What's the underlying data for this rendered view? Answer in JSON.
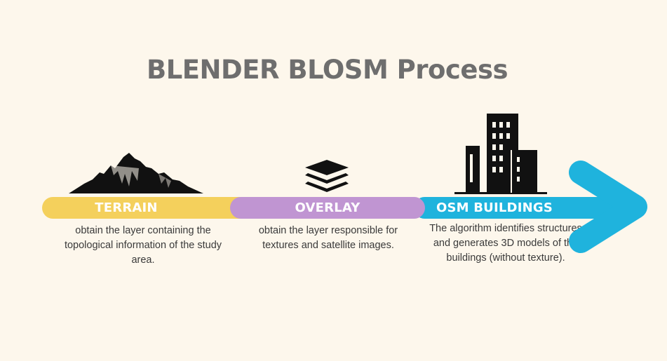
{
  "title": "BLENDER BLOSM Process",
  "colors": {
    "background": "#fdf7ec",
    "title": "#6e6e6e",
    "terrain": "#f4d05c",
    "overlay": "#c095d2",
    "osm_buildings": "#1fb3dd",
    "icons": "#111111"
  },
  "steps": [
    {
      "label": "TERRAIN",
      "icon": "mountain-icon",
      "description": "obtain the layer containing the topological information of the study area."
    },
    {
      "label": "OVERLAY",
      "icon": "layers-icon",
      "description": "obtain the layer responsible for textures and satellite images."
    },
    {
      "label": "OSM BUILDINGS",
      "icon": "building-icon",
      "description": "The algorithm identifies structures and generates 3D models of the buildings (without texture)."
    }
  ]
}
